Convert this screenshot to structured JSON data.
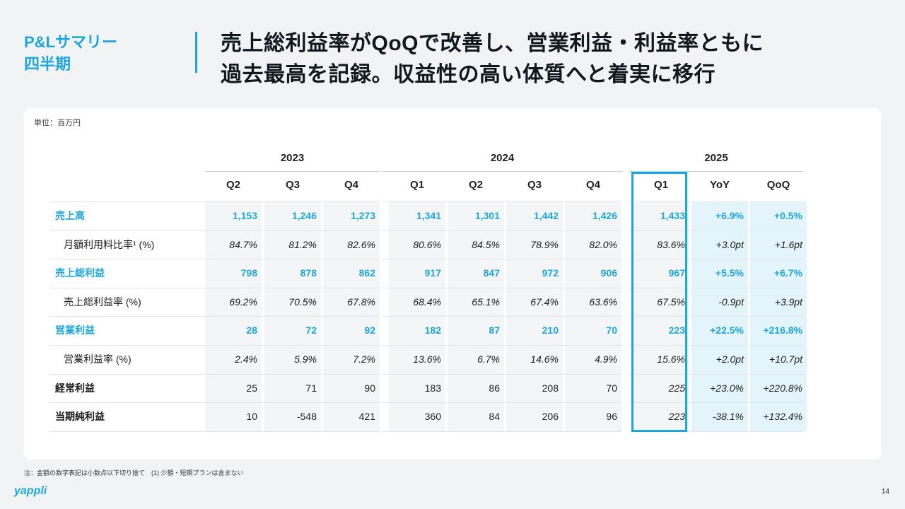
{
  "section": {
    "line1": "P&Lサマリー",
    "line2": "四半期"
  },
  "headline": {
    "line1": "売上総利益率がQoQで改善し、営業利益・利益率ともに",
    "line2": "過去最高を記録。収益性の高い体質へと着実に移行"
  },
  "unit": "単位：百万円",
  "years": [
    "2023",
    "2024",
    "2025"
  ],
  "columns": [
    "Q2",
    "Q3",
    "Q4",
    "Q1",
    "Q2",
    "Q3",
    "Q4",
    "Q1",
    "YoY",
    "QoQ"
  ],
  "rows": [
    {
      "label": "売上高",
      "style": "blue",
      "values": [
        "1,153",
        "1,246",
        "1,273",
        "1,341",
        "1,301",
        "1,442",
        "1,426",
        "1,433",
        "+6.9%",
        "+0.5%"
      ]
    },
    {
      "label": "月額利用料比率¹ (%)",
      "style": "sub-it",
      "values": [
        "84.7%",
        "81.2%",
        "82.6%",
        "80.6%",
        "84.5%",
        "78.9%",
        "82.0%",
        "83.6%",
        "+3.0pt",
        "+1.6pt"
      ]
    },
    {
      "label": "売上総利益",
      "style": "blue",
      "values": [
        "798",
        "878",
        "862",
        "917",
        "847",
        "972",
        "906",
        "967",
        "+5.5%",
        "+6.7%"
      ]
    },
    {
      "label": "売上総利益率 (%)",
      "style": "sub-it",
      "values": [
        "69.2%",
        "70.5%",
        "67.8%",
        "68.4%",
        "65.1%",
        "67.4%",
        "63.6%",
        "67.5%",
        "-0.9pt",
        "+3.9pt"
      ]
    },
    {
      "label": "営業利益",
      "style": "blue",
      "values": [
        "28",
        "72",
        "92",
        "182",
        "87",
        "210",
        "70",
        "223",
        "+22.5%",
        "+216.8%"
      ]
    },
    {
      "label": "営業利益率 (%)",
      "style": "sub-it",
      "values": [
        "2.4%",
        "5.9%",
        "7.2%",
        "13.6%",
        "6.7%",
        "14.6%",
        "4.9%",
        "15.6%",
        "+2.0pt",
        "+10.7pt"
      ]
    },
    {
      "label": "経常利益",
      "style": "plain",
      "values": [
        "25",
        "71",
        "90",
        "183",
        "86",
        "208",
        "70",
        "225",
        "+23.0%",
        "+220.8%"
      ]
    },
    {
      "label": "当期純利益",
      "style": "plain",
      "values": [
        "10",
        "-548",
        "421",
        "360",
        "84",
        "206",
        "96",
        "223",
        "-38.1%",
        "+132.4%"
      ]
    }
  ],
  "note": "注：金額の数字表記は小数点以下切り捨て　(1) 少額・短期プランは含まない",
  "logo": "yappli",
  "page_number": "14",
  "colors": {
    "accent": "#1ba6dd",
    "highlight_bg": "#e4f4fb",
    "cell_bg": "#f4f5f6"
  }
}
